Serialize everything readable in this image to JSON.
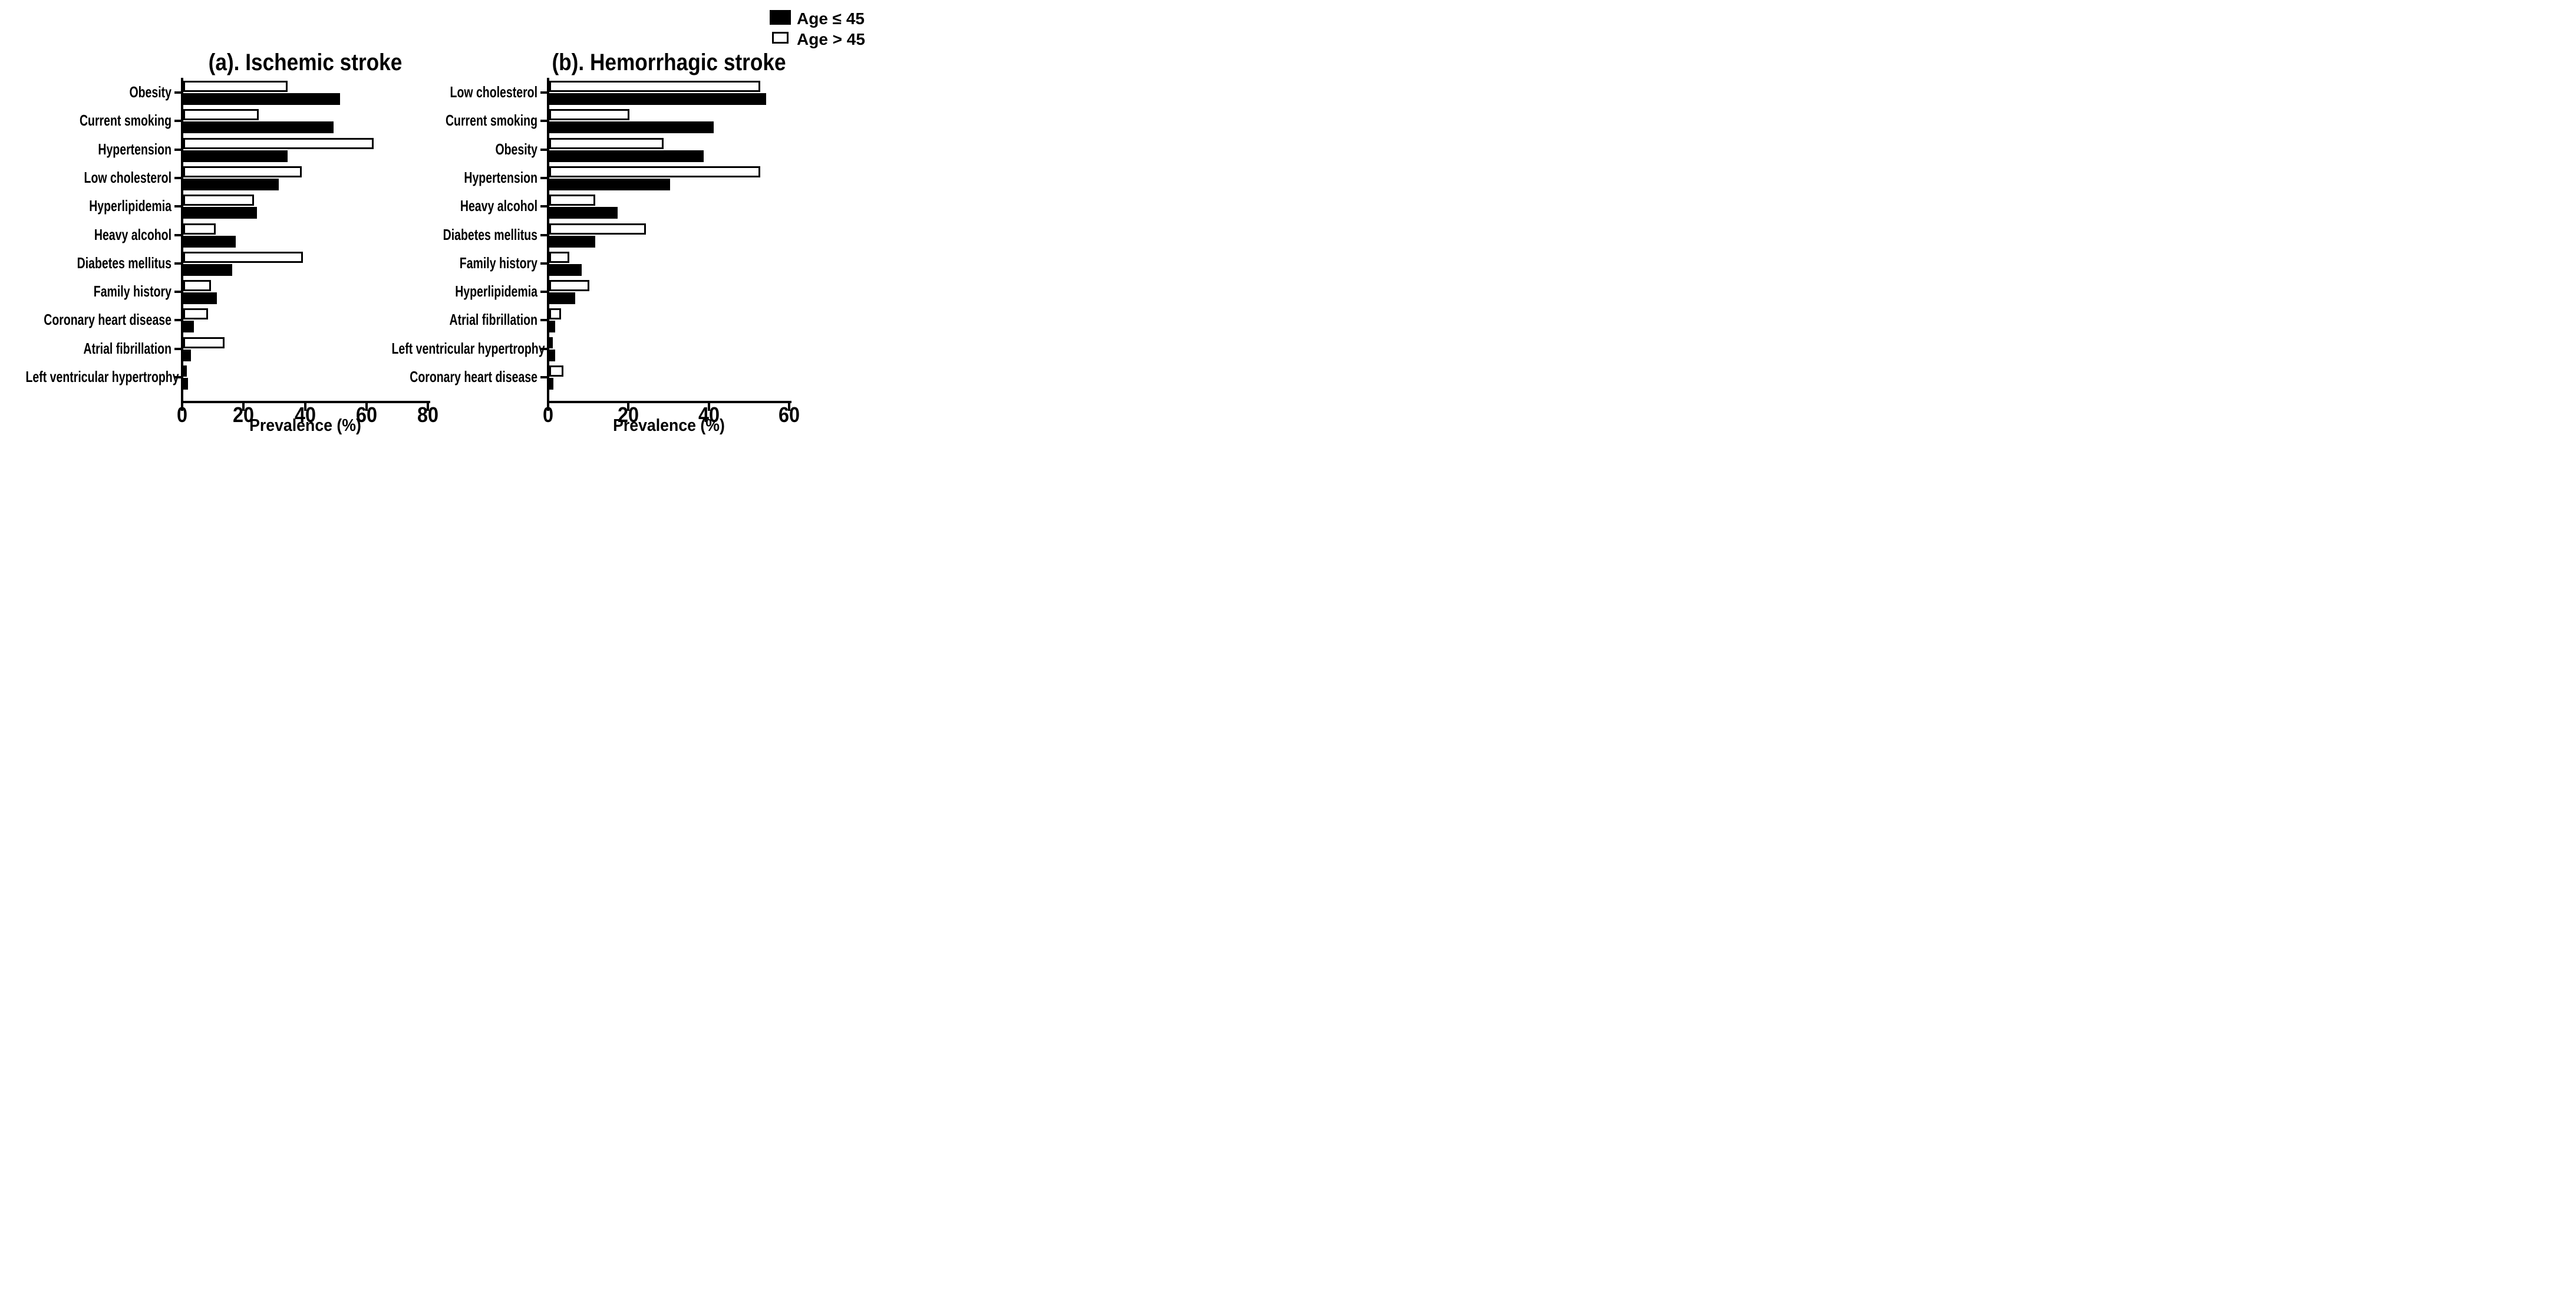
{
  "figure": {
    "background": "#ffffff",
    "bar_fill_young": "#000000",
    "bar_fill_old": "#ffffff",
    "axis_color": "#000000"
  },
  "legend": {
    "items": [
      {
        "label": "Age ≤ 45",
        "swatch": "black"
      },
      {
        "label": "Age > 45",
        "swatch": "white-outlined"
      }
    ]
  },
  "chart_data": [
    {
      "type": "bar",
      "orientation": "horizontal",
      "title": "(a). Ischemic stroke",
      "xlabel": "Prevalence (%)",
      "xlim": [
        0,
        80
      ],
      "xticks": [
        0,
        20,
        40,
        60,
        80
      ],
      "grid": false,
      "legend_position": "top-right-of-figure",
      "categories": [
        "Obesity",
        "Current smoking",
        "Hypertension",
        "Low cholesterol",
        "Hyperlipidemia",
        "Heavy alcohol",
        "Diabetes mellitus",
        "Family history",
        "Coronary heart disease",
        "Atrial fibrillation",
        "Left ventricular hypertrophy"
      ],
      "series": [
        {
          "name": "Age ≤ 45",
          "fill": "#000000",
          "values": [
            51,
            49,
            34,
            31,
            24,
            17,
            16,
            11,
            3.5,
            2.5,
            1.5
          ]
        },
        {
          "name": "Age > 45",
          "fill": "#ffffff",
          "values": [
            34,
            24.5,
            62,
            38.5,
            23,
            10.5,
            39,
            9,
            8,
            13.5,
            1
          ]
        }
      ]
    },
    {
      "type": "bar",
      "orientation": "horizontal",
      "title": "(b). Hemorrhagic stroke",
      "xlabel": "Prevalence (%)",
      "xlim": [
        0,
        60
      ],
      "xticks": [
        0,
        20,
        40,
        60
      ],
      "grid": false,
      "legend_position": "top-right-of-figure",
      "categories": [
        "Low cholesterol",
        "Current smoking",
        "Obesity",
        "Hypertension",
        "Heavy alcohol",
        "Diabetes mellitus",
        "Family history",
        "Hyperlipidemia",
        "Atrial fibrillation",
        "Left ventricular hypertrophy",
        "Coronary heart disease"
      ],
      "series": [
        {
          "name": "Age ≤ 45",
          "fill": "#000000",
          "values": [
            54,
            41,
            38.5,
            30,
            17,
            11.5,
            8,
            6.5,
            1.5,
            1.5,
            1
          ]
        },
        {
          "name": "Age > 45",
          "fill": "#ffffff",
          "values": [
            52.5,
            20,
            28.5,
            52.5,
            11.5,
            24,
            5,
            10,
            3,
            0.5,
            3.5
          ]
        }
      ]
    }
  ]
}
